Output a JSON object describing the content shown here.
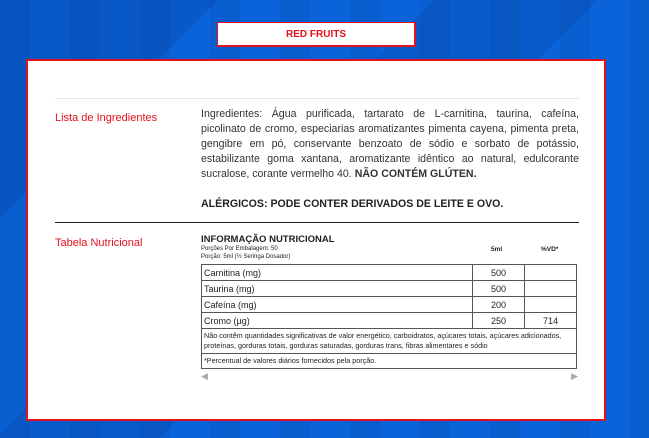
{
  "variant_tab": "RED FRUITS",
  "ingredients": {
    "label": "Lista de Ingredientes",
    "text": "Ingredientes: Água purificada, tartarato de L-carnitina, taurina, cafeína, picolinato de cromo, especiarias aromatizantes pimenta cayena, pimenta preta, gengibre em pó, conservante benzoato de sódio e sorbato de potássio, estabilizante goma xantana, aromatizante idêntico ao natural, edulcorante sucralose, corante vermelho 40.",
    "gluten": "NÃO CONTÉM GLÚTEN.",
    "allergens": "ALÉRGICOS: PODE CONTER DERIVADOS DE LEITE E OVO."
  },
  "nutrition": {
    "label": "Tabela Nutricional",
    "title": "INFORMAÇÃO NUTRICIONAL",
    "servings": "Porções Por Embalagem: 50",
    "portion": "Porção: 5ml (½ Seringa Dosador)",
    "col1": "5ml",
    "col2": "%VD*",
    "rows": [
      {
        "name": "Carnitina (mg)",
        "amount": "500",
        "vd": ""
      },
      {
        "name": "Taurina (mg)",
        "amount": "500",
        "vd": ""
      },
      {
        "name": "Cafeína (mg)",
        "amount": "200",
        "vd": ""
      },
      {
        "name": "Cromo (µg)",
        "amount": "250",
        "vd": "714"
      }
    ],
    "note": "Não contêm quantidades significativas de valor energético, carboidratos, açúcares totais, açúcares adicionados, proteínas, gorduras totais, gorduras saturadas, gorduras trans, fibras alimentares e sódio",
    "footnote": "*Percentual de valores diários fornecidos pela porção."
  }
}
